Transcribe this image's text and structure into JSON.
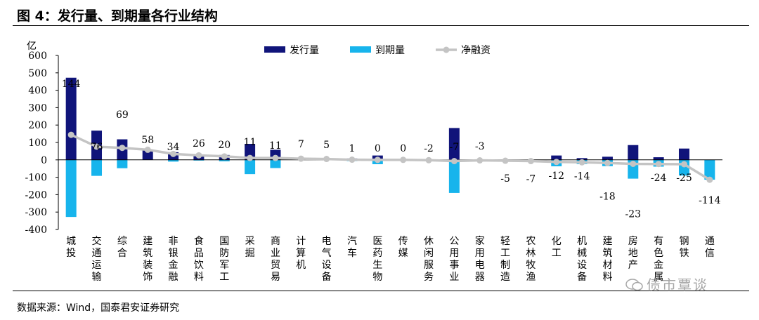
{
  "page": {
    "title": "图 4：发行量、到期量各行业结构",
    "source": "数据来源：Wind，国泰君安证券研究",
    "watermark": "债市覃谈"
  },
  "colors": {
    "issuance": "#10147a",
    "maturity": "#17b4ec",
    "net": "#c4c4c4"
  },
  "chart_data": {
    "type": "bar",
    "y_unit": "亿",
    "ylim": [
      -400,
      600
    ],
    "yticks": [
      600,
      500,
      400,
      300,
      200,
      100,
      0,
      -100,
      -200,
      -300,
      -400
    ],
    "legend_position": "top",
    "categories": [
      "城投",
      "交通运输",
      "综合",
      "建筑装饰",
      "非银金融",
      "食品饮料",
      "国防军工",
      "采掘",
      "商业贸易",
      "计算机",
      "电气设备",
      "汽车",
      "医药生物",
      "传媒",
      "休闲服务",
      "公用事业",
      "家用电器",
      "轻工制造",
      "农林牧渔",
      "化工",
      "机械设备",
      "建筑材料",
      "房地产",
      "有色金属",
      "钢铁",
      "通信"
    ],
    "series": [
      {
        "name": "发行量",
        "type": "bar",
        "values": [
          472,
          168,
          118,
          58,
          44,
          30,
          28,
          92,
          58,
          7,
          5,
          8,
          25,
          0,
          0,
          183,
          0,
          0,
          0,
          25,
          10,
          18,
          85,
          15,
          65,
          0
        ]
      },
      {
        "name": "到期量",
        "type": "bar",
        "values": [
          -328,
          -92,
          -48,
          0,
          -10,
          -4,
          -8,
          -82,
          -47,
          0,
          0,
          -7,
          -25,
          0,
          -2,
          -190,
          -3,
          -5,
          -7,
          -37,
          -24,
          -36,
          -108,
          -39,
          -90,
          -114
        ]
      },
      {
        "name": "净融资",
        "type": "line",
        "values": [
          144,
          76,
          69,
          58,
          34,
          26,
          20,
          11,
          11,
          7,
          5,
          1,
          0,
          0,
          -2,
          -7,
          -3,
          -5,
          -7,
          -12,
          -14,
          -18,
          -23,
          -24,
          -25,
          -114
        ],
        "labels": [
          "144",
          "76",
          "69",
          "58",
          "34",
          "26",
          "20",
          "11",
          "11",
          "7",
          "5",
          "1",
          "0",
          "0",
          "-2",
          "-7",
          "-3",
          "-5",
          "-7",
          "-12",
          "-14",
          "-18",
          "-23",
          "-24",
          "-25",
          "-114"
        ]
      }
    ]
  }
}
